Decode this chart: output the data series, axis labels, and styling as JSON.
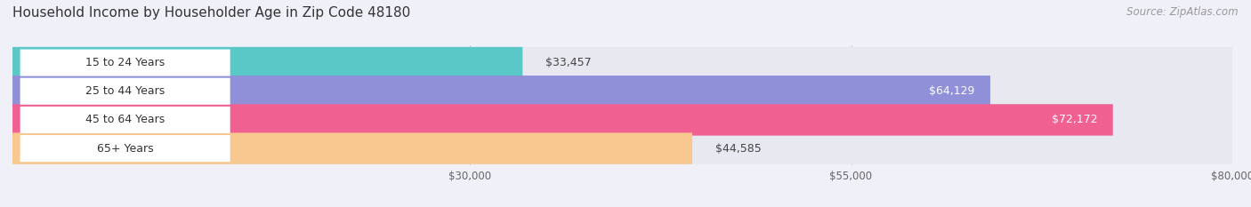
{
  "title": "Household Income by Householder Age in Zip Code 48180",
  "source": "Source: ZipAtlas.com",
  "categories": [
    "15 to 24 Years",
    "25 to 44 Years",
    "45 to 64 Years",
    "65+ Years"
  ],
  "values": [
    33457,
    64129,
    72172,
    44585
  ],
  "value_labels": [
    "$33,457",
    "$64,129",
    "$72,172",
    "$44,585"
  ],
  "bar_colors": [
    "#5bc8c8",
    "#9090d8",
    "#f06090",
    "#f8c890"
  ],
  "bar_track_color": "#e8e8f0",
  "background_color": "#f0f0f8",
  "value_label_colors": [
    "#444444",
    "#ffffff",
    "#ffffff",
    "#444444"
  ],
  "xmin": 0,
  "xmax": 80000,
  "xticks": [
    30000,
    55000,
    80000
  ],
  "xtick_labels": [
    "$30,000",
    "$55,000",
    "$80,000"
  ],
  "title_fontsize": 11,
  "source_fontsize": 8.5,
  "bar_height": 0.55,
  "bar_label_fontsize": 9,
  "cat_label_fontsize": 9
}
